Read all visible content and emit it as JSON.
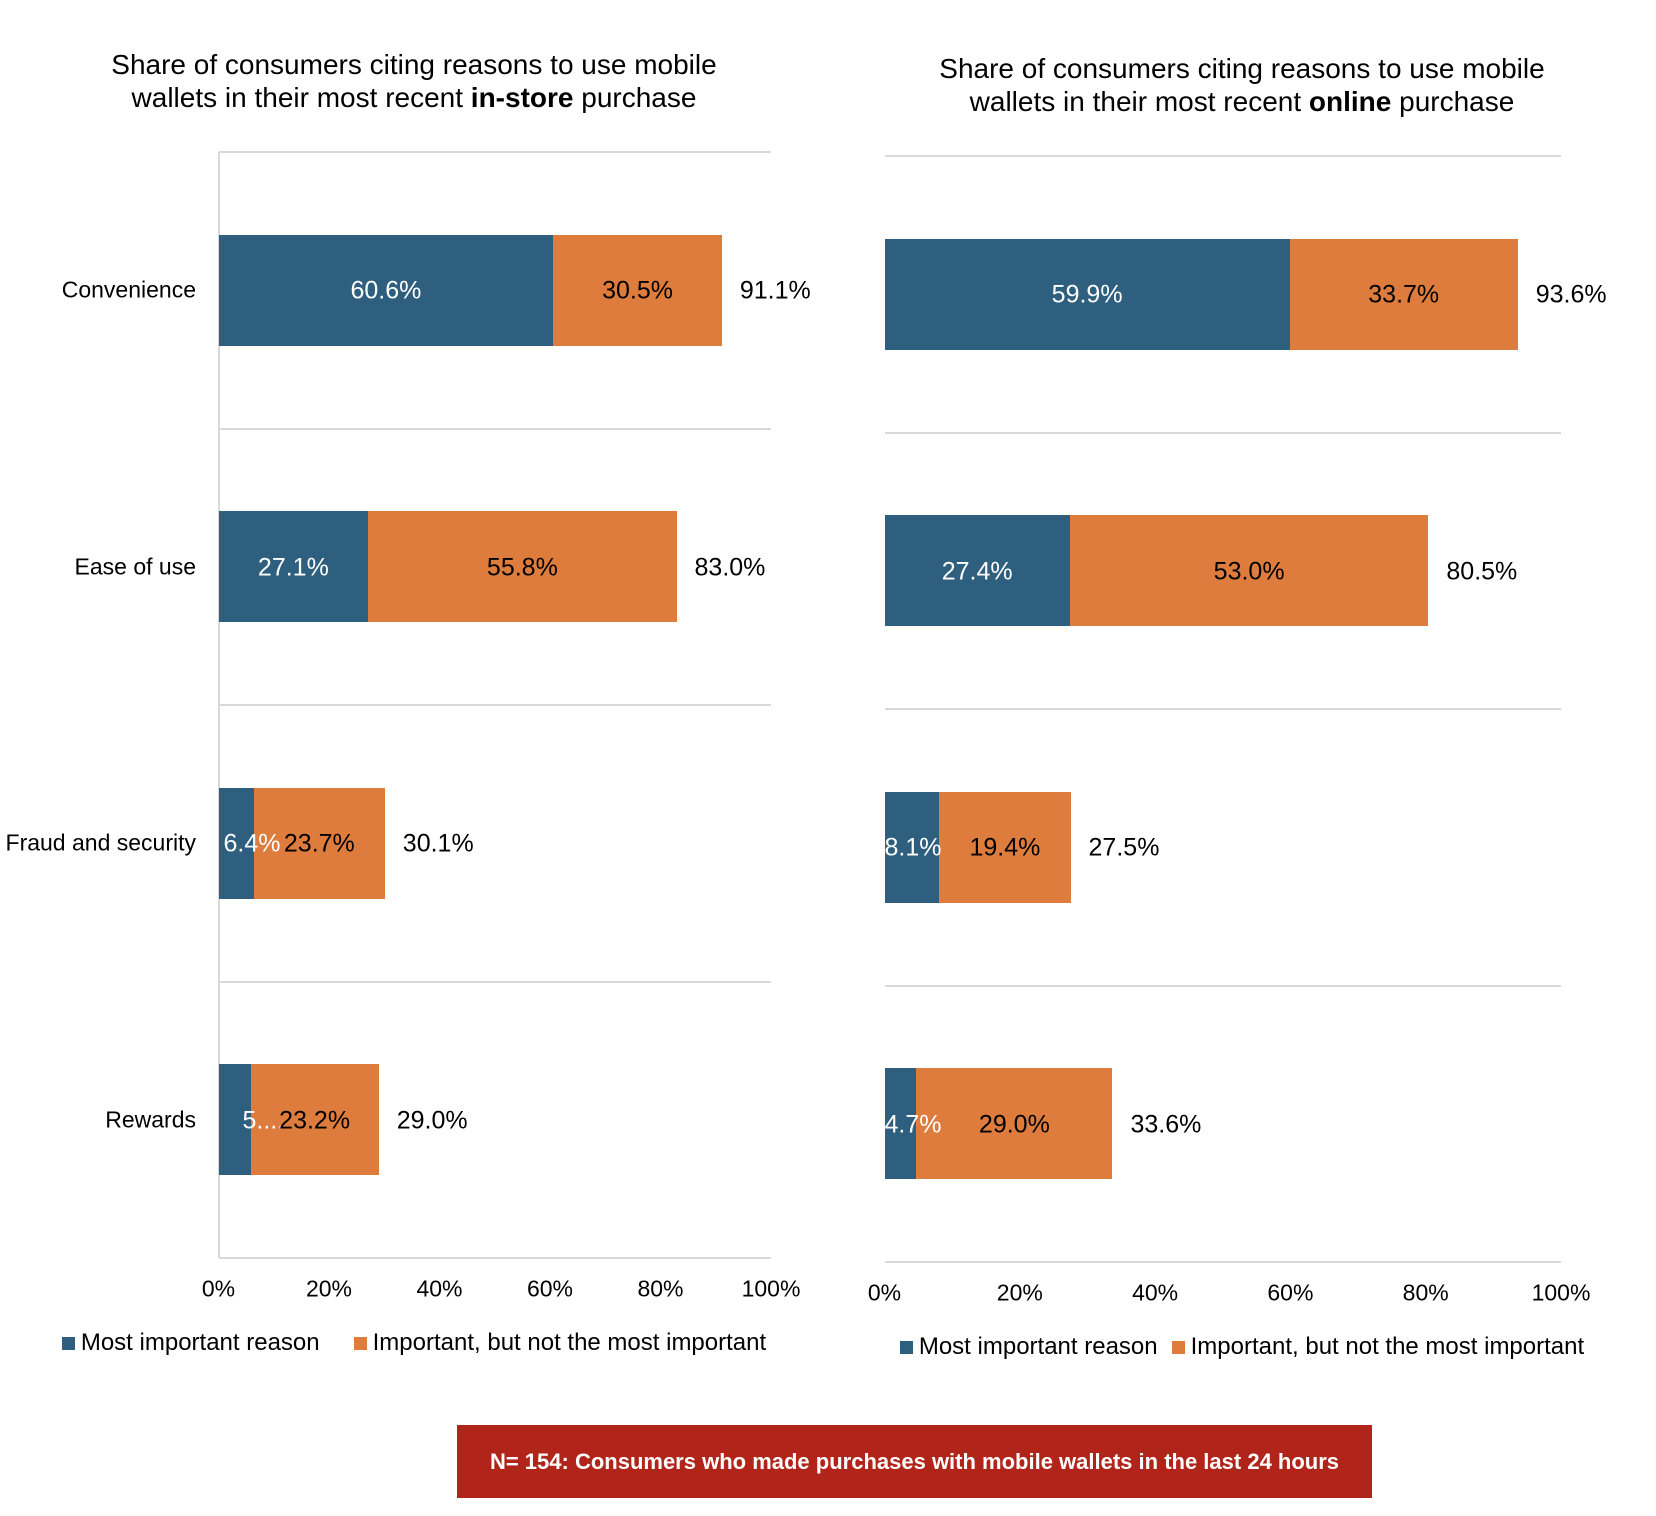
{
  "chart_data": [
    {
      "type": "bar",
      "orientation": "horizontal",
      "stacked": true,
      "title": {
        "line1": "Share of consumers citing reasons to use mobile",
        "line2_prefix": "wallets in their most recent ",
        "line2_bold": "in-store",
        "line2_suffix": " purchase"
      },
      "categories": [
        "Convenience",
        "Ease of use",
        "Fraud and security",
        "Rewards"
      ],
      "series": [
        {
          "name": "Most important reason",
          "color_key": "most_important",
          "values": [
            60.6,
            27.1,
            6.4,
            5.8
          ],
          "labels": [
            "60.6%",
            "27.1%",
            "6.4%",
            "5...."
          ]
        },
        {
          "name": "Important, but not the most important",
          "color_key": "important",
          "values": [
            30.5,
            55.8,
            23.7,
            23.2
          ],
          "labels": [
            "30.5%",
            "55.8%",
            "23.7%",
            "23.2%"
          ]
        }
      ],
      "totals": {
        "values": [
          91.1,
          83.0,
          30.1,
          29.0
        ],
        "labels": [
          "91.1%",
          "83.0%",
          "30.1%",
          "29.0%"
        ]
      },
      "x_ticks": [
        "0%",
        "20%",
        "40%",
        "60%",
        "80%",
        "100%"
      ],
      "xlim": [
        0,
        100
      ],
      "grid": true,
      "legend_position": "bottom"
    },
    {
      "type": "bar",
      "orientation": "horizontal",
      "stacked": true,
      "title": {
        "line1": "Share of consumers citing reasons to use mobile",
        "line2_prefix": "wallets in their most recent ",
        "line2_bold": "online",
        "line2_suffix": " purchase"
      },
      "categories": [
        "Convenience",
        "Ease of use",
        "Fraud and security",
        "Rewards"
      ],
      "series": [
        {
          "name": "Most important reason",
          "color_key": "most_important",
          "values": [
            59.9,
            27.4,
            8.1,
            4.7
          ],
          "labels": [
            "59.9%",
            "27.4%",
            "8.1%",
            "4.7%"
          ]
        },
        {
          "name": "Important, but not the most important",
          "color_key": "important",
          "values": [
            33.7,
            53.0,
            19.4,
            29.0
          ],
          "labels": [
            "33.7%",
            "53.0%",
            "19.4%",
            "29.0%"
          ]
        }
      ],
      "totals": {
        "values": [
          93.6,
          80.5,
          27.5,
          33.6
        ],
        "labels": [
          "93.6%",
          "80.5%",
          "27.5%",
          "33.6%"
        ]
      },
      "x_ticks": [
        "0%",
        "20%",
        "40%",
        "60%",
        "80%",
        "100%"
      ],
      "xlim": [
        0,
        100
      ],
      "grid": true,
      "legend_position": "bottom"
    }
  ],
  "banner": {
    "text": "N= 154: Consumers who made purchases with mobile wallets in the last 24 hours"
  },
  "colors": {
    "most_important": "#2F5F7E",
    "important": "#DD7C3C",
    "banner_bg": "#B0241A",
    "banner_text": "#FFFFFF",
    "gridline": "#D9D9D9",
    "label_on_most_important": "#FFFFFF",
    "label_on_important": "#000000"
  }
}
